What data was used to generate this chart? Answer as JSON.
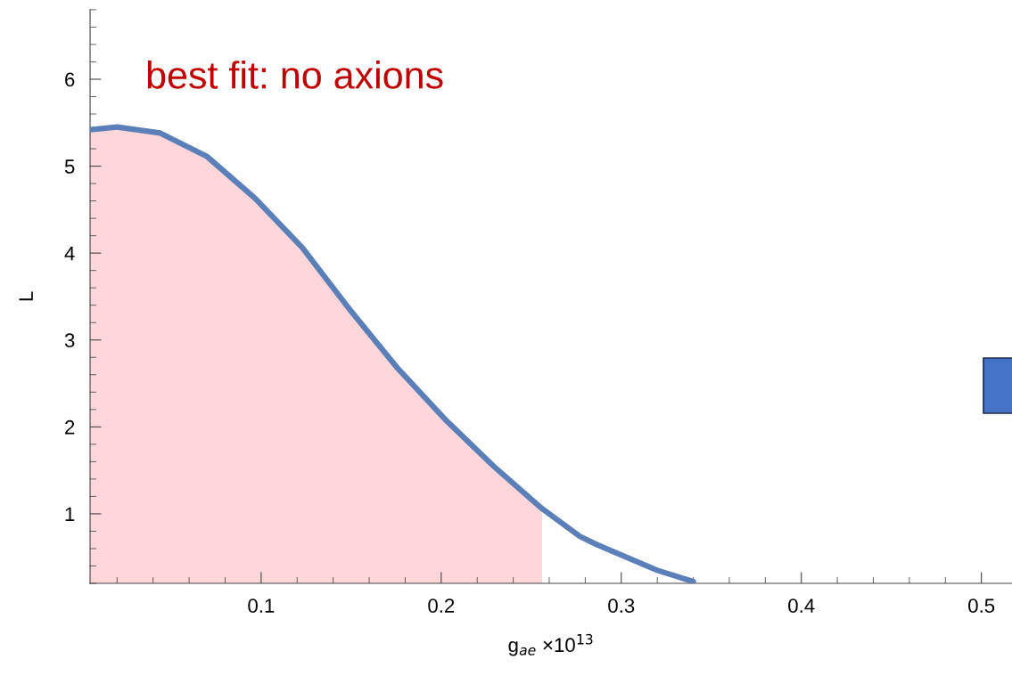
{
  "chart_data": {
    "type": "line",
    "xlabel": "g$_{ae}$ ×10$^{13}$",
    "ylabel": "L",
    "x": [
      0.005,
      0.02,
      0.044,
      0.07,
      0.0966,
      0.123,
      0.15,
      0.176,
      0.203,
      0.229,
      0.256,
      0.277,
      0.286,
      0.32,
      0.34
    ],
    "series": [
      {
        "type": "area",
        "color": "#ffd6d9",
        "x": [
          0.005,
          0.02,
          0.044,
          0.07,
          0.0966,
          0.123,
          0.15,
          0.176,
          0.203,
          0.229,
          0.256
        ],
        "values": [
          5.42,
          5.45,
          5.38,
          5.11,
          4.63,
          4.06,
          3.33,
          2.67,
          2.07,
          1.55,
          1.06
        ]
      },
      {
        "color": "#5b7fb9",
        "values": [
          5.42,
          5.45,
          5.38,
          5.11,
          4.63,
          4.06,
          3.33,
          2.67,
          2.07,
          1.55,
          1.06,
          0.74,
          0.65,
          0.35,
          0.22
        ]
      }
    ],
    "xlim": [
      0.005,
      0.517
    ],
    "xticks": [
      0.1,
      0.2,
      0.3,
      0.4,
      0.5
    ],
    "ylim": [
      0.2,
      6.8
    ],
    "yticks": [
      1,
      2,
      3,
      4,
      5,
      6
    ],
    "annotations": [
      "best fit: no axions"
    ],
    "grid": false,
    "legend": false
  }
}
